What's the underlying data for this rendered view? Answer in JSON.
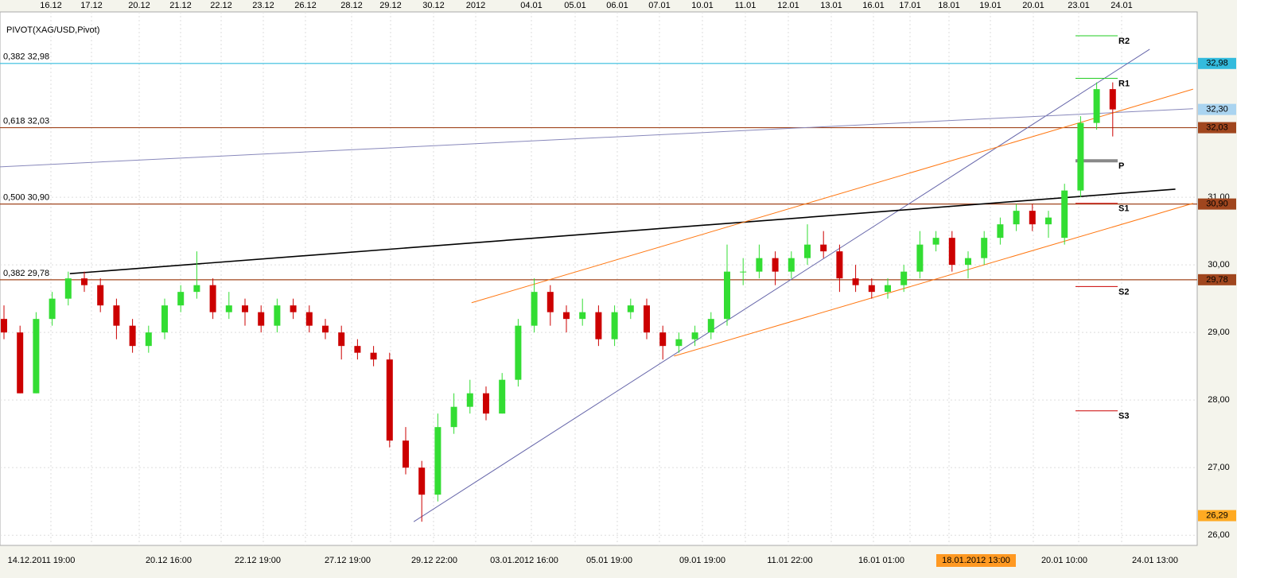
{
  "chart_data": {
    "type": "candlestick",
    "title": "PIVOT(XAG/USD,Pivot)",
    "ylim": [
      25.92,
      33.66
    ],
    "yticks": [
      {
        "value": 26,
        "label": "26,00"
      },
      {
        "value": 27,
        "label": "27,00"
      },
      {
        "value": 28,
        "label": "28,00"
      },
      {
        "value": 29,
        "label": "29,00"
      },
      {
        "value": 30,
        "label": "30,00"
      },
      {
        "value": 31,
        "label": "31,00"
      }
    ],
    "grid": true,
    "up_color": "#33dd33",
    "down_color": "#cc0000",
    "top_dates": [
      "16.12",
      "17.12",
      "20.12",
      "21.12",
      "22.12",
      "23.12",
      "26.12",
      "28.12",
      "29.12",
      "30.12",
      "2012",
      "04.01",
      "05.01",
      "06.01",
      "07.01",
      "10.01",
      "11.01",
      "12.01",
      "13.01",
      "16.01",
      "17.01",
      "18.01",
      "19.01",
      "20.01",
      "23.01",
      "24.01"
    ],
    "bottom_times": [
      "14.12.2011 19:00",
      "20.12 16:00",
      "22.12 19:00",
      "27.12 19:00",
      "29.12 22:00",
      "03.01.2012 16:00",
      "05.01 19:00",
      "09.01 19:00",
      "11.01 22:00",
      "16.01 01:00",
      "18.01.2012 13:00",
      "20.01 10:00",
      "24.01 13:00"
    ],
    "ohlc": [
      [
        29.2,
        29.4,
        28.9,
        29.0
      ],
      [
        29.0,
        29.1,
        28.1,
        28.1
      ],
      [
        28.1,
        29.3,
        28.1,
        29.2
      ],
      [
        29.2,
        29.6,
        29.1,
        29.5
      ],
      [
        29.5,
        29.9,
        29.4,
        29.8
      ],
      [
        29.8,
        29.9,
        29.6,
        29.7
      ],
      [
        29.7,
        29.8,
        29.3,
        29.4
      ],
      [
        29.4,
        29.5,
        28.9,
        29.1
      ],
      [
        29.1,
        29.2,
        28.7,
        28.8
      ],
      [
        28.8,
        29.1,
        28.7,
        29.0
      ],
      [
        29.0,
        29.5,
        28.9,
        29.4
      ],
      [
        29.4,
        29.7,
        29.3,
        29.6
      ],
      [
        29.6,
        30.2,
        29.5,
        29.7
      ],
      [
        29.7,
        29.8,
        29.2,
        29.3
      ],
      [
        29.3,
        29.6,
        29.2,
        29.4
      ],
      [
        29.4,
        29.5,
        29.1,
        29.3
      ],
      [
        29.3,
        29.4,
        29.0,
        29.1
      ],
      [
        29.1,
        29.5,
        29.0,
        29.4
      ],
      [
        29.4,
        29.5,
        29.2,
        29.3
      ],
      [
        29.3,
        29.4,
        29.0,
        29.1
      ],
      [
        29.1,
        29.2,
        28.9,
        29.0
      ],
      [
        29.0,
        29.1,
        28.6,
        28.8
      ],
      [
        28.8,
        28.9,
        28.6,
        28.7
      ],
      [
        28.7,
        28.8,
        28.5,
        28.6
      ],
      [
        28.6,
        28.7,
        27.3,
        27.4
      ],
      [
        27.4,
        27.6,
        26.9,
        27.0
      ],
      [
        27.0,
        27.1,
        26.2,
        26.6
      ],
      [
        26.6,
        27.8,
        26.5,
        27.6
      ],
      [
        27.6,
        28.1,
        27.5,
        27.9
      ],
      [
        27.9,
        28.3,
        27.8,
        28.1
      ],
      [
        28.1,
        28.2,
        27.7,
        27.8
      ],
      [
        27.8,
        28.4,
        27.8,
        28.3
      ],
      [
        28.3,
        29.2,
        28.2,
        29.1
      ],
      [
        29.1,
        29.8,
        29.0,
        29.6
      ],
      [
        29.6,
        29.7,
        29.1,
        29.3
      ],
      [
        29.3,
        29.4,
        29.0,
        29.2
      ],
      [
        29.2,
        29.5,
        29.1,
        29.3
      ],
      [
        29.3,
        29.4,
        28.8,
        28.9
      ],
      [
        28.9,
        29.4,
        28.8,
        29.3
      ],
      [
        29.3,
        29.5,
        29.2,
        29.4
      ],
      [
        29.4,
        29.5,
        28.9,
        29.0
      ],
      [
        29.0,
        29.1,
        28.6,
        28.8
      ],
      [
        28.8,
        29.0,
        28.7,
        28.9
      ],
      [
        28.9,
        29.1,
        28.8,
        29.0
      ],
      [
        29.0,
        29.3,
        28.9,
        29.2
      ],
      [
        29.2,
        30.3,
        29.1,
        29.9
      ],
      [
        29.9,
        30.1,
        29.7,
        29.9
      ],
      [
        29.9,
        30.3,
        29.8,
        30.1
      ],
      [
        30.1,
        30.2,
        29.7,
        29.9
      ],
      [
        29.9,
        30.2,
        29.8,
        30.1
      ],
      [
        30.1,
        30.6,
        30.0,
        30.3
      ],
      [
        30.3,
        30.5,
        30.1,
        30.2
      ],
      [
        30.2,
        30.3,
        29.6,
        29.8
      ],
      [
        29.8,
        30.0,
        29.6,
        29.7
      ],
      [
        29.7,
        29.8,
        29.5,
        29.6
      ],
      [
        29.6,
        29.8,
        29.5,
        29.7
      ],
      [
        29.7,
        30.0,
        29.6,
        29.9
      ],
      [
        29.9,
        30.5,
        29.8,
        30.3
      ],
      [
        30.3,
        30.5,
        30.2,
        30.4
      ],
      [
        30.4,
        30.5,
        29.9,
        30.0
      ],
      [
        30.0,
        30.2,
        29.8,
        30.1
      ],
      [
        30.1,
        30.5,
        30.0,
        30.4
      ],
      [
        30.4,
        30.7,
        30.3,
        30.6
      ],
      [
        30.6,
        30.9,
        30.5,
        30.8
      ],
      [
        30.8,
        30.9,
        30.5,
        30.6
      ],
      [
        30.6,
        30.8,
        30.4,
        30.7
      ],
      [
        30.4,
        31.2,
        30.3,
        31.1
      ],
      [
        31.1,
        32.2,
        31.0,
        32.1
      ],
      [
        32.1,
        32.7,
        32.0,
        32.6
      ],
      [
        32.6,
        32.7,
        31.9,
        32.3
      ]
    ],
    "levels": [
      {
        "label": "0,382 32,98",
        "value": 32.98,
        "axis_label": "32,98",
        "color": "#33bbdd"
      },
      {
        "label": "0,618 32,03",
        "value": 32.03,
        "axis_label": "32,03",
        "color": "#a0461e"
      },
      {
        "label": "0,500 30,90",
        "value": 30.9,
        "axis_label": "30,90",
        "color": "#a0461e"
      },
      {
        "label": "0,382 29,78",
        "value": 29.78,
        "axis_label": "29,78",
        "color": "#a0461e"
      }
    ],
    "price_labels": [
      {
        "value": 32.3,
        "label": "32,30",
        "color": "#aad4f0"
      },
      {
        "value": 26.29,
        "label": "26,29",
        "color": "#ffaa22"
      }
    ],
    "pivots": [
      {
        "name": "R2",
        "value": 33.39,
        "color": "#22cc22"
      },
      {
        "name": "R1",
        "value": 32.76,
        "color": "#22cc22"
      },
      {
        "name": "P",
        "value": 31.54,
        "color": "#888888"
      },
      {
        "name": "S1",
        "value": 30.91,
        "color": "#cc0000"
      },
      {
        "name": "S2",
        "value": 29.68,
        "color": "#cc0000"
      },
      {
        "name": "S3",
        "value": 27.84,
        "color": "#cc0000"
      }
    ],
    "trendlines": [
      {
        "x": [
          25.5,
          71.3
        ],
        "y": [
          26.2,
          33.19
        ],
        "color": "#6666aa"
      },
      {
        "x": [
          -0.25,
          74
        ],
        "y": [
          31.45,
          32.31
        ],
        "color": "#8888bb"
      },
      {
        "x": [
          4.1,
          72.9
        ],
        "y": [
          29.87,
          31.12
        ],
        "color": "#000000"
      },
      {
        "x": [
          29.1,
          74
        ],
        "y": [
          29.44,
          32.6
        ],
        "color": "#ff7711"
      },
      {
        "x": [
          41.7,
          74
        ],
        "y": [
          28.65,
          30.91
        ],
        "color": "#ff7711"
      }
    ]
  }
}
